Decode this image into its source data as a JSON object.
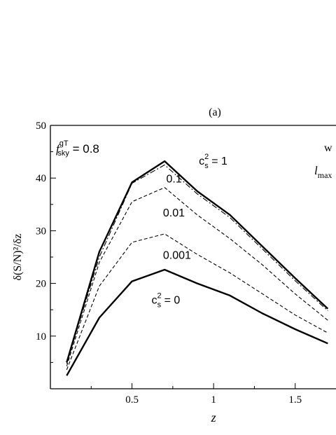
{
  "chart_data": {
    "type": "line",
    "title": "(a)",
    "xlabel": "z",
    "ylabel": "δ(S/N)²/δz",
    "xlim": [
      0.0,
      1.75
    ],
    "ylim": [
      0,
      50
    ],
    "xticks": [
      0.5,
      1,
      1.5
    ],
    "xtick_labels": [
      "0.5",
      "1",
      "1.5"
    ],
    "yticks": [
      10,
      20,
      30,
      40,
      50
    ],
    "ytick_labels": [
      "10",
      "20",
      "30",
      "40",
      "50"
    ],
    "grid": false,
    "annotations": {
      "fsky": {
        "f": "f",
        "sub": "sky",
        "sup": "gT",
        "rest": " = 0.8"
      },
      "w": "w",
      "lmax": {
        "l": "l",
        "sub": "max"
      }
    },
    "series": [
      {
        "label_base": "c",
        "label_sub": "s",
        "label_sup": "2",
        "label_rest": " = 1",
        "style": "solid-thick",
        "label_at": [
          0.91,
          43.2
        ],
        "x": [
          0.1,
          0.3,
          0.5,
          0.7,
          0.9,
          1.1,
          1.3,
          1.5,
          1.7
        ],
        "y": [
          5.0,
          26.0,
          39.2,
          43.2,
          37.5,
          33.0,
          27.0,
          21.0,
          15.2
        ]
      },
      {
        "label_base": "0.1",
        "style": "dash-dot",
        "label_at": [
          0.71,
          39.8
        ],
        "x": [
          0.1,
          0.3,
          0.5,
          0.7,
          0.9,
          1.1,
          1.3,
          1.5,
          1.7
        ],
        "y": [
          4.8,
          25.0,
          39.0,
          42.5,
          37.0,
          32.5,
          26.5,
          20.5,
          14.8
        ]
      },
      {
        "label_base": "0.01",
        "style": "dashed",
        "label_at": [
          0.69,
          33.4
        ],
        "x": [
          0.1,
          0.3,
          0.5,
          0.7,
          0.9,
          1.1,
          1.3,
          1.5,
          1.7
        ],
        "y": [
          4.3,
          24.0,
          35.5,
          38.2,
          33.0,
          28.5,
          23.5,
          18.0,
          13.0
        ]
      },
      {
        "label_base": "0.001",
        "style": "dashed",
        "label_at": [
          0.69,
          25.3
        ],
        "x": [
          0.1,
          0.3,
          0.5,
          0.7,
          0.9,
          1.1,
          1.3,
          1.5,
          1.7
        ],
        "y": [
          3.6,
          19.5,
          27.8,
          29.4,
          25.5,
          22.0,
          18.0,
          14.0,
          10.6
        ]
      },
      {
        "label_base": "c",
        "label_sub": "s",
        "label_sup": "2",
        "label_rest": " = 0",
        "style": "solid-thick",
        "label_at": [
          0.62,
          16.8
        ],
        "x": [
          0.1,
          0.3,
          0.5,
          0.7,
          0.9,
          1.1,
          1.3,
          1.5,
          1.7
        ],
        "y": [
          2.5,
          13.5,
          20.4,
          22.6,
          20.0,
          17.7,
          14.3,
          11.3,
          8.6
        ]
      }
    ]
  }
}
